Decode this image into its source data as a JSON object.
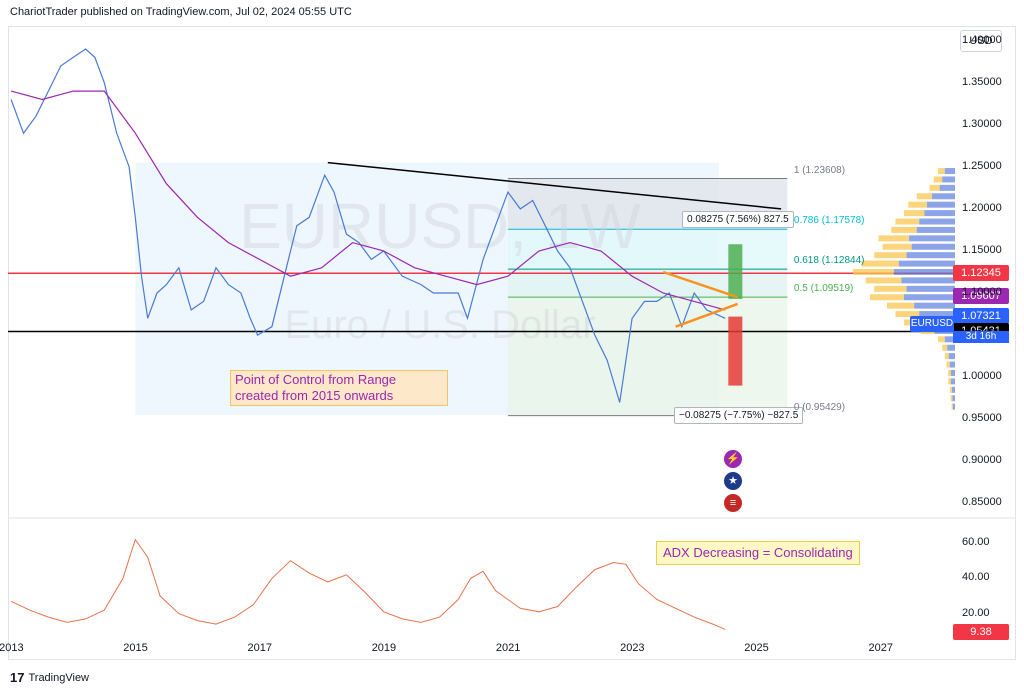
{
  "header": {
    "publisher": "ChariotTrader published on TradingView.com, Jul 02, 2024 05:55 UTC"
  },
  "toolbar": {
    "currency": "USD"
  },
  "watermark": {
    "symbol": "EURUSD, 1W",
    "name": "Euro / U.S. Dollar"
  },
  "footer": {
    "brand": "TradingView"
  },
  "colors": {
    "price_line": "#4a7ad6",
    "ma_line": "#9c27b0",
    "adx_line": "#e8734a",
    "poc_line": "#f23645",
    "support_line": "#000000",
    "trend_line": "#000000",
    "triangle": "#f7931e",
    "green_zone": "#4caf50",
    "red_zone": "#e53935",
    "range_box": "#e3f2fd"
  },
  "annotations": {
    "poc_note": "Point of Control from Range created from 2015 onwards",
    "adx_note": "ADX Decreasing = Consolidating",
    "measure_up": "0.08275 (7.56%) 827.5",
    "measure_down": "−0.08275 (−7.75%) −827.5"
  },
  "fib_levels": [
    {
      "label": "1 (1.23608)",
      "price": 1.23608,
      "color": "#787b86"
    },
    {
      "label": "0.786 (1.17578)",
      "price": 1.17578,
      "color": "#00bcd4"
    },
    {
      "label": "0.618 (1.12844)",
      "price": 1.12844,
      "color": "#009688"
    },
    {
      "label": "0.5 (1.09519)",
      "price": 1.09519,
      "color": "#4caf50"
    },
    {
      "label": "0 (0.95429)",
      "price": 0.95429,
      "color": "#787b86"
    }
  ],
  "price_tags": [
    {
      "value": "1.12345",
      "price": 1.12345,
      "color": "#f23645"
    },
    {
      "value": "1.09607",
      "price": 1.09607,
      "color": "#9c27b0"
    },
    {
      "value": "1.07321",
      "price": 1.07321,
      "color": "#2962ff"
    },
    {
      "value": "1.05431",
      "price": 1.05431,
      "color": "#000000"
    }
  ],
  "symbol_tag": "EURUSD",
  "countdown": "3d 16h",
  "adx_tag": {
    "value": "9.38",
    "color": "#f23645"
  },
  "chart_data": [
    {
      "type": "line",
      "title": "EURUSD, 1W",
      "subtitle": "Euro / U.S. Dollar",
      "x_ticks": [
        "2013",
        "2015",
        "2017",
        "2019",
        "2021",
        "2023",
        "2025",
        "2027"
      ],
      "x_tick_years": [
        2013,
        2015,
        2017,
        2019,
        2021,
        2023,
        2025,
        2027
      ],
      "xlim": [
        2012.95,
        2028.2
      ],
      "y_ticks": [
        "0.85000",
        "0.90000",
        "0.95000",
        "1.00000",
        "1.05000",
        "1.10000",
        "1.15000",
        "1.20000",
        "1.25000",
        "1.30000",
        "1.35000",
        "1.40000"
      ],
      "ylim": [
        0.835,
        1.415
      ],
      "series": [
        {
          "x": [
            2013.0,
            2013.2,
            2013.4,
            2013.6,
            2013.8,
            2014.0,
            2014.2,
            2014.35,
            2014.5,
            2014.7,
            2014.9,
            2015.0,
            2015.1,
            2015.2,
            2015.35,
            2015.5,
            2015.7,
            2015.9,
            2016.1,
            2016.3,
            2016.5,
            2016.7,
            2016.85,
            2016.97,
            2017.2,
            2017.4,
            2017.6,
            2017.8,
            2018.05,
            2018.2,
            2018.4,
            2018.6,
            2018.8,
            2019.0,
            2019.3,
            2019.6,
            2019.8,
            2020.2,
            2020.35,
            2020.6,
            2020.8,
            2021.0,
            2021.2,
            2021.4,
            2021.6,
            2021.8,
            2022.0,
            2022.2,
            2022.4,
            2022.6,
            2022.8,
            2023.0,
            2023.2,
            2023.4,
            2023.6,
            2023.8,
            2024.0,
            2024.2,
            2024.5
          ],
          "y": [
            1.33,
            1.29,
            1.31,
            1.34,
            1.37,
            1.38,
            1.39,
            1.38,
            1.35,
            1.29,
            1.25,
            1.19,
            1.12,
            1.07,
            1.1,
            1.11,
            1.13,
            1.08,
            1.09,
            1.13,
            1.11,
            1.1,
            1.07,
            1.05,
            1.06,
            1.12,
            1.18,
            1.19,
            1.24,
            1.22,
            1.17,
            1.16,
            1.14,
            1.15,
            1.12,
            1.11,
            1.1,
            1.1,
            1.07,
            1.14,
            1.18,
            1.22,
            1.2,
            1.21,
            1.18,
            1.15,
            1.13,
            1.09,
            1.05,
            1.02,
            0.97,
            1.07,
            1.09,
            1.09,
            1.1,
            1.06,
            1.1,
            1.08,
            1.07
          ]
        },
        {
          "x": [
            2013.0,
            2013.5,
            2014.0,
            2014.5,
            2015.0,
            2015.5,
            2016.0,
            2016.5,
            2017.0,
            2017.5,
            2018.0,
            2018.5,
            2019.0,
            2019.5,
            2020.0,
            2020.5,
            2021.0,
            2021.5,
            2022.0,
            2022.5,
            2023.0,
            2023.5,
            2024.0,
            2024.5
          ],
          "y": [
            1.34,
            1.33,
            1.34,
            1.34,
            1.29,
            1.23,
            1.19,
            1.16,
            1.14,
            1.12,
            1.13,
            1.16,
            1.15,
            1.13,
            1.12,
            1.11,
            1.12,
            1.15,
            1.16,
            1.15,
            1.12,
            1.1,
            1.09,
            1.08
          ]
        }
      ]
    },
    {
      "type": "line",
      "y_ticks": [
        "20.00",
        "40.00",
        "60.00"
      ],
      "ylim": [
        5,
        72
      ],
      "series": [
        {
          "x": [
            2013.0,
            2013.3,
            2013.6,
            2013.9,
            2014.2,
            2014.5,
            2014.8,
            2015.0,
            2015.2,
            2015.4,
            2015.7,
            2016.0,
            2016.3,
            2016.6,
            2016.9,
            2017.2,
            2017.5,
            2017.8,
            2018.1,
            2018.4,
            2018.7,
            2019.0,
            2019.3,
            2019.6,
            2019.9,
            2020.2,
            2020.4,
            2020.6,
            2020.8,
            2021.0,
            2021.2,
            2021.5,
            2021.8,
            2022.1,
            2022.4,
            2022.7,
            2022.9,
            2023.1,
            2023.4,
            2023.7,
            2024.0,
            2024.3,
            2024.5
          ],
          "y": [
            27,
            22,
            18,
            15,
            17,
            22,
            40,
            62,
            52,
            30,
            20,
            16,
            14,
            18,
            25,
            40,
            50,
            43,
            38,
            42,
            32,
            21,
            17,
            15,
            18,
            28,
            40,
            44,
            33,
            28,
            23,
            21,
            24,
            35,
            45,
            49,
            48,
            37,
            28,
            23,
            18,
            14,
            11
          ]
        }
      ]
    }
  ]
}
